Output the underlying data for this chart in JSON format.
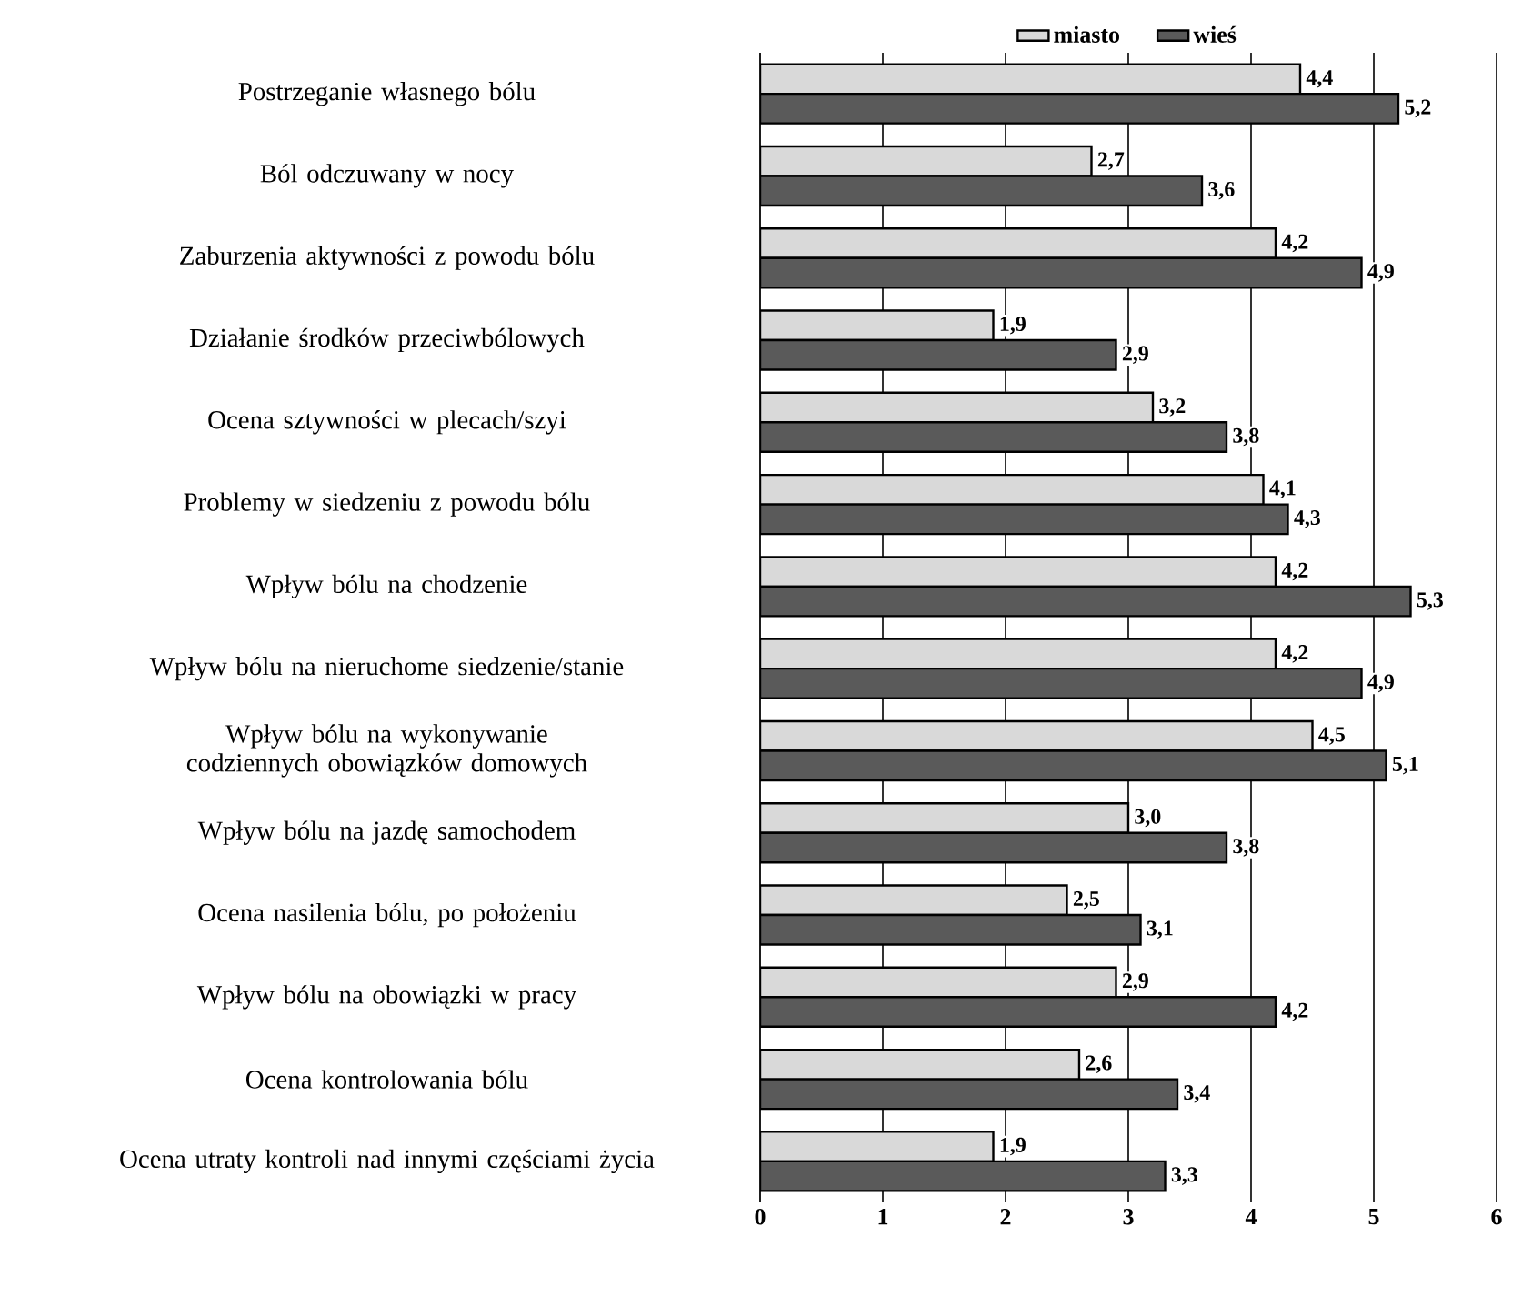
{
  "chart_data": {
    "type": "bar",
    "orientation": "horizontal",
    "categories": [
      "Postrzeganie własnego bólu",
      "Ból odczuwany w nocy",
      "Zaburzenia aktywności z powodu bólu",
      "Działanie środków przeciwbólowych",
      "Ocena sztywności w plecach/szyi",
      "Problemy w siedzeniu z powodu bólu",
      "Wpływ bólu na chodzenie",
      "Wpływ bólu na nieruchome siedzenie/stanie",
      "Wpływ bólu na wykonywanie codziennych obowiązków domowych",
      "Wpływ bólu na jazdę samochodem",
      "Ocena nasilenia bólu, po położeniu",
      "Wpływ bólu na obowiązki w pracy",
      "Ocena kontrolowania bólu",
      "Ocena utraty kontroli nad innymi częściami życia"
    ],
    "series": [
      {
        "name": "miasto",
        "color": "#d9d9d9",
        "values": [
          4.4,
          2.7,
          4.2,
          1.9,
          3.2,
          4.1,
          4.2,
          4.2,
          4.5,
          3.0,
          2.5,
          2.9,
          2.6,
          1.9
        ],
        "value_labels": [
          "4,4",
          "2,7",
          "4,2",
          "1,9",
          "3,2",
          "4,1",
          "4,2",
          "4,2",
          "4,5",
          "3,0",
          "2,5",
          "2,9",
          "2,6",
          "1,9"
        ]
      },
      {
        "name": "wieś",
        "color": "#5a5a5a",
        "values": [
          5.2,
          3.6,
          4.9,
          2.9,
          3.8,
          4.3,
          5.3,
          4.9,
          5.1,
          3.8,
          3.1,
          4.2,
          3.4,
          3.3
        ],
        "value_labels": [
          "5,2",
          "3,6",
          "4,9",
          "2,9",
          "3,8",
          "4,3",
          "5,3",
          "4,9",
          "5,1",
          "3,8",
          "3,1",
          "4,2",
          "3,4",
          "3,3"
        ]
      }
    ],
    "xlim": [
      0,
      6
    ],
    "xticks": [
      0,
      1,
      2,
      3,
      4,
      5,
      6
    ],
    "grid": "x",
    "legend": "top"
  }
}
